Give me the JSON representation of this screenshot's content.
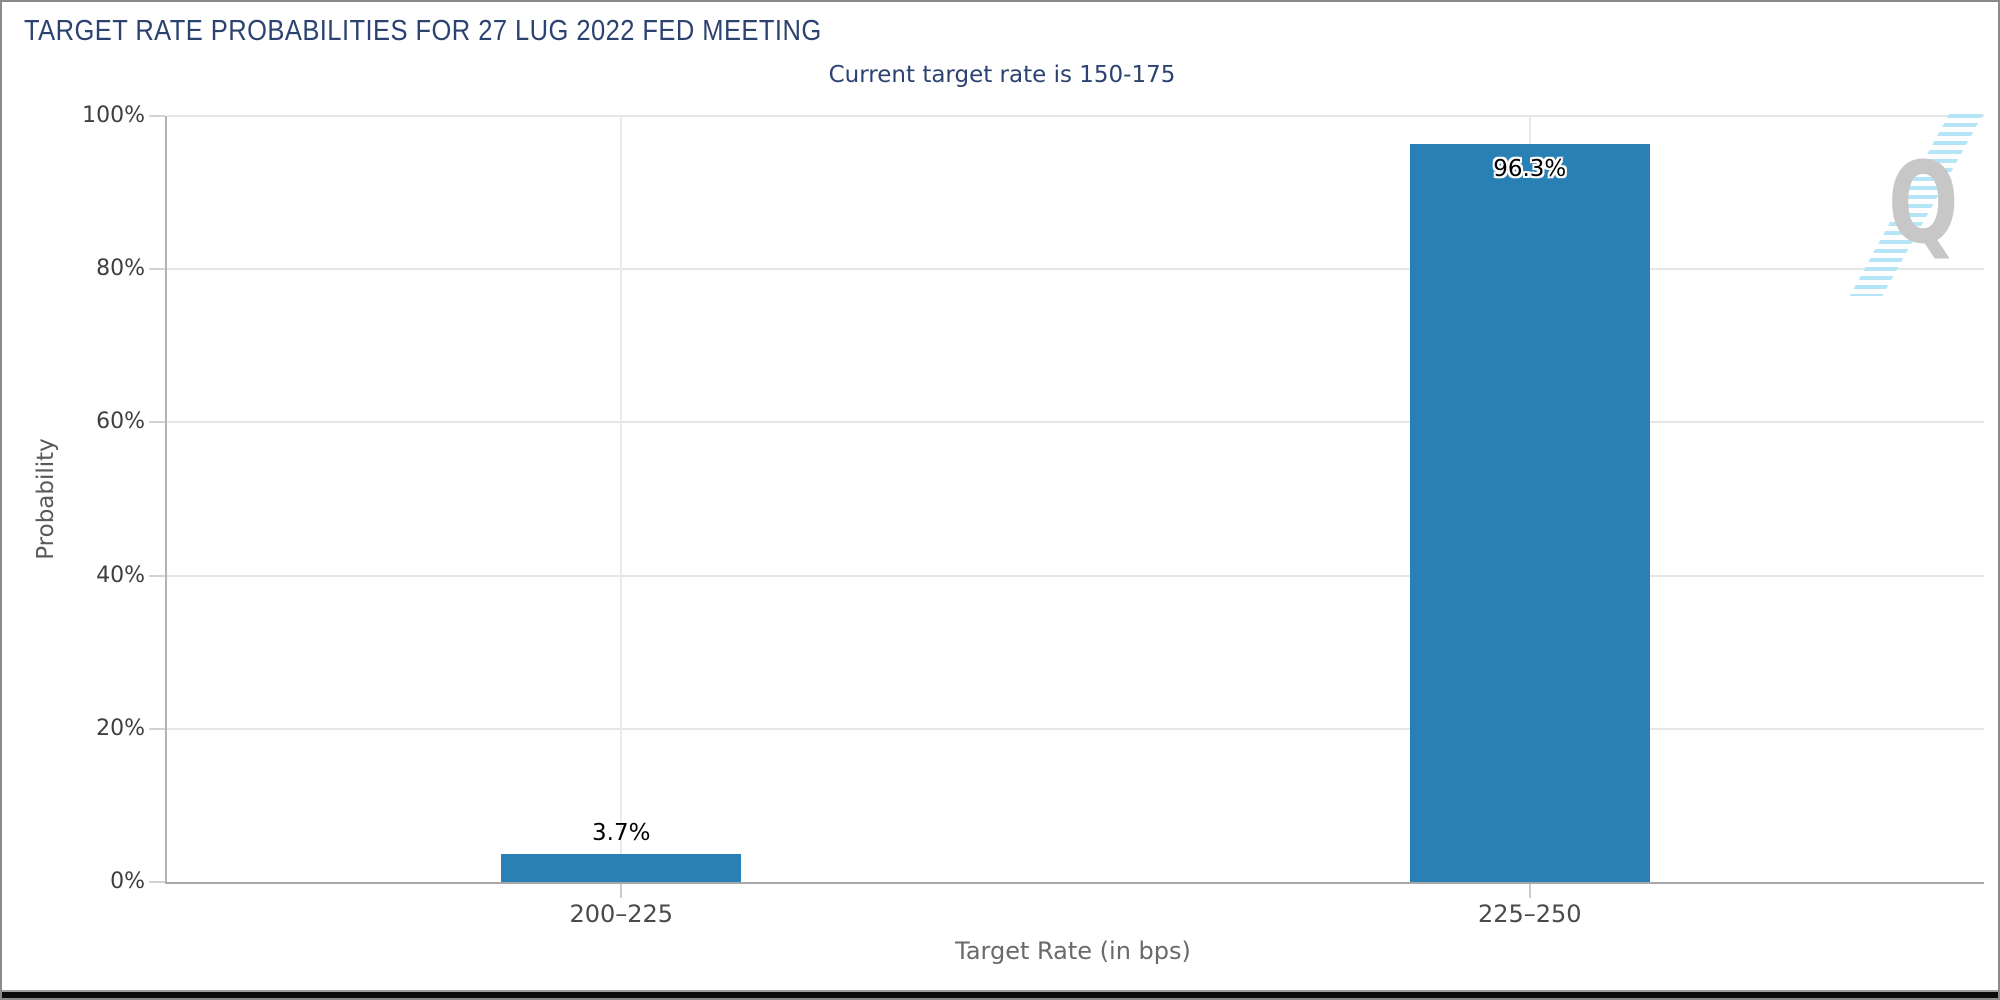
{
  "header": {
    "title": "TARGET RATE PROBABILITIES FOR 27 LUG 2022 FED MEETING",
    "subtitle": "Current target rate is 150-175"
  },
  "watermark": {
    "letter": "Q",
    "letter_color": "#c7c7c7",
    "stripe_color": "#b5e6f8"
  },
  "colors": {
    "bar": "#2980b4",
    "heading_navy": "#2c4270",
    "axis_line": "#a8a8a8",
    "gridline": "#e6e6e6",
    "footer_bar": "#000000"
  },
  "chart_data": {
    "type": "bar",
    "title": "TARGET RATE PROBABILITIES FOR 27 LUG 2022 FED MEETING",
    "subtitle": "Current target rate is 150-175",
    "categories": [
      "200–225",
      "225–250"
    ],
    "values": [
      3.7,
      96.3
    ],
    "value_labels": [
      "3.7%",
      "96.3%"
    ],
    "xlabel": "Target Rate (in bps)",
    "ylabel": "Probability",
    "ylim": [
      0,
      100
    ],
    "ytick_values": [
      0,
      20,
      40,
      60,
      80,
      100
    ],
    "ytick_labels": [
      "0%",
      "20%",
      "40%",
      "60%",
      "80%",
      "100%"
    ],
    "grid": true,
    "legend": false,
    "bar_color": "#2980b4"
  }
}
